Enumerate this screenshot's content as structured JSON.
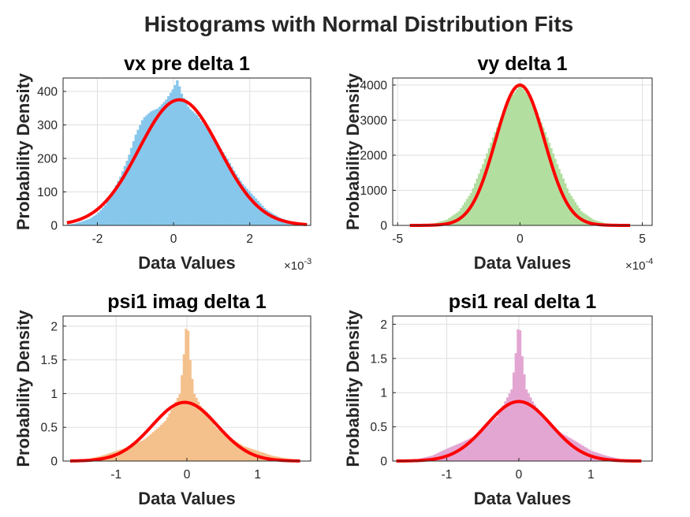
{
  "figure": {
    "title": "Histograms with Normal Distribution Fits",
    "fit_color": "#FF0000",
    "axis_color": "#262626",
    "grid_color": "#DFDFDF"
  },
  "chart_data": [
    {
      "type": "bar",
      "subtype": "histogram-with-normal-fit",
      "title": "vx pre delta 1",
      "xlabel": "Data Values",
      "ylabel": "Probability Density",
      "x_exponent": "-3",
      "xlim": [
        -2.9,
        3.6
      ],
      "ylim": [
        0,
        440
      ],
      "xticks": [
        -2,
        0,
        2
      ],
      "xtick_labels": [
        "-2",
        "0",
        "2"
      ],
      "yticks": [
        0,
        100,
        200,
        300,
        400
      ],
      "ytick_labels": [
        "0",
        "100",
        "200",
        "300",
        "400"
      ],
      "grid": true,
      "hist_color": "#87C7EC",
      "hist_bins": {
        "x": [
          -2.8,
          -2.6,
          -2.4,
          -2.2,
          -2.0,
          -1.8,
          -1.6,
          -1.4,
          -1.2,
          -1.0,
          -0.8,
          -0.6,
          -0.4,
          -0.2,
          0.0,
          0.1,
          0.2,
          0.4,
          0.6,
          0.8,
          1.0,
          1.2,
          1.4,
          1.6,
          1.8,
          2.0,
          2.2,
          2.4,
          2.6,
          2.8,
          3.0,
          3.2,
          3.5
        ],
        "density": [
          2,
          5,
          12,
          20,
          35,
          60,
          100,
          145,
          200,
          270,
          320,
          340,
          350,
          375,
          410,
          435,
          395,
          350,
          330,
          300,
          270,
          235,
          200,
          160,
          125,
          100,
          75,
          50,
          35,
          22,
          14,
          8,
          4
        ]
      },
      "normal_fit": {
        "mean": 0.15,
        "std": 1.06,
        "peak": 375,
        "x_range": [
          -2.8,
          3.5
        ]
      }
    },
    {
      "type": "bar",
      "subtype": "histogram-with-normal-fit",
      "title": "vy delta 1",
      "xlabel": "Data Values",
      "ylabel": "Probability Density",
      "x_exponent": "-4",
      "xlim": [
        -5.2,
        5.4
      ],
      "ylim": [
        0,
        4200
      ],
      "xticks": [
        -5,
        0,
        5
      ],
      "xtick_labels": [
        "-5",
        "0",
        "5"
      ],
      "yticks": [
        0,
        1000,
        2000,
        3000,
        4000
      ],
      "ytick_labels": [
        "0",
        "1000",
        "2000",
        "3000",
        "4000"
      ],
      "grid": true,
      "hist_color": "#B2DEA0",
      "hist_bins": {
        "x": [
          -4.5,
          -3.5,
          -3.0,
          -2.5,
          -2.0,
          -1.5,
          -1.0,
          -0.5,
          0.0,
          0.5,
          1.0,
          1.5,
          2.0,
          2.5,
          3.0,
          3.5,
          4.5
        ],
        "density": [
          10,
          60,
          160,
          400,
          930,
          1770,
          2700,
          3530,
          4000,
          3530,
          2700,
          1770,
          930,
          400,
          160,
          60,
          10
        ]
      },
      "normal_fit": {
        "mean": 0.0,
        "std": 1.0,
        "peak": 4000,
        "x_range": [
          -4.5,
          4.5
        ]
      }
    },
    {
      "type": "bar",
      "subtype": "histogram-with-normal-fit",
      "title": "psi1 imag delta 1",
      "xlabel": "Data Values",
      "ylabel": "Probability Density",
      "x_exponent": "",
      "xlim": [
        -1.75,
        1.75
      ],
      "ylim": [
        0,
        2.15
      ],
      "xticks": [
        -1,
        0,
        1
      ],
      "xtick_labels": [
        "-1",
        "0",
        "1"
      ],
      "yticks": [
        0,
        0.5,
        1,
        1.5,
        2
      ],
      "ytick_labels": [
        "0",
        "0.5",
        "1",
        "1.5",
        "2"
      ],
      "grid": true,
      "hist_color": "#F4C08C",
      "hist_bins": {
        "x": [
          -1.6,
          -1.4,
          -1.2,
          -1.0,
          -0.8,
          -0.6,
          -0.4,
          -0.3,
          -0.2,
          -0.1,
          -0.05,
          0.0,
          0.05,
          0.1,
          0.2,
          0.3,
          0.4,
          0.6,
          0.8,
          1.0,
          1.2,
          1.4,
          1.6
        ],
        "density": [
          0.01,
          0.03,
          0.08,
          0.15,
          0.22,
          0.32,
          0.5,
          0.6,
          0.8,
          1.0,
          1.5,
          2.15,
          1.4,
          1.0,
          0.8,
          0.7,
          0.5,
          0.35,
          0.22,
          0.15,
          0.08,
          0.04,
          0.01
        ]
      },
      "normal_fit": {
        "mean": -0.03,
        "std": 0.46,
        "peak": 0.87,
        "x_range": [
          -1.65,
          1.6
        ]
      }
    },
    {
      "type": "bar",
      "subtype": "histogram-with-normal-fit",
      "title": "psi1 real delta 1",
      "xlabel": "Data Values",
      "ylabel": "Probability Density",
      "x_exponent": "",
      "xlim": [
        -1.75,
        1.85
      ],
      "ylim": [
        0,
        2.12
      ],
      "xticks": [
        -1,
        0,
        1
      ],
      "xtick_labels": [
        "-1",
        "0",
        "1"
      ],
      "yticks": [
        0,
        0.5,
        1,
        1.5,
        2
      ],
      "ytick_labels": [
        "0",
        "0.5",
        "1",
        "1.5",
        "2"
      ],
      "grid": true,
      "hist_color": "#E3A6D2",
      "hist_bins": {
        "x": [
          -1.6,
          -1.4,
          -1.2,
          -1.0,
          -0.8,
          -0.6,
          -0.4,
          -0.3,
          -0.2,
          -0.1,
          -0.05,
          0.0,
          0.05,
          0.1,
          0.2,
          0.3,
          0.4,
          0.6,
          0.8,
          1.0,
          1.2,
          1.4,
          1.6
        ],
        "density": [
          0.01,
          0.03,
          0.08,
          0.18,
          0.27,
          0.37,
          0.55,
          0.65,
          0.85,
          1.05,
          1.5,
          2.1,
          1.45,
          1.05,
          0.85,
          0.7,
          0.55,
          0.4,
          0.28,
          0.15,
          0.08,
          0.03,
          0.01
        ]
      },
      "normal_fit": {
        "mean": 0.0,
        "std": 0.45,
        "peak": 0.87,
        "x_range": [
          -1.7,
          1.7
        ]
      }
    }
  ]
}
